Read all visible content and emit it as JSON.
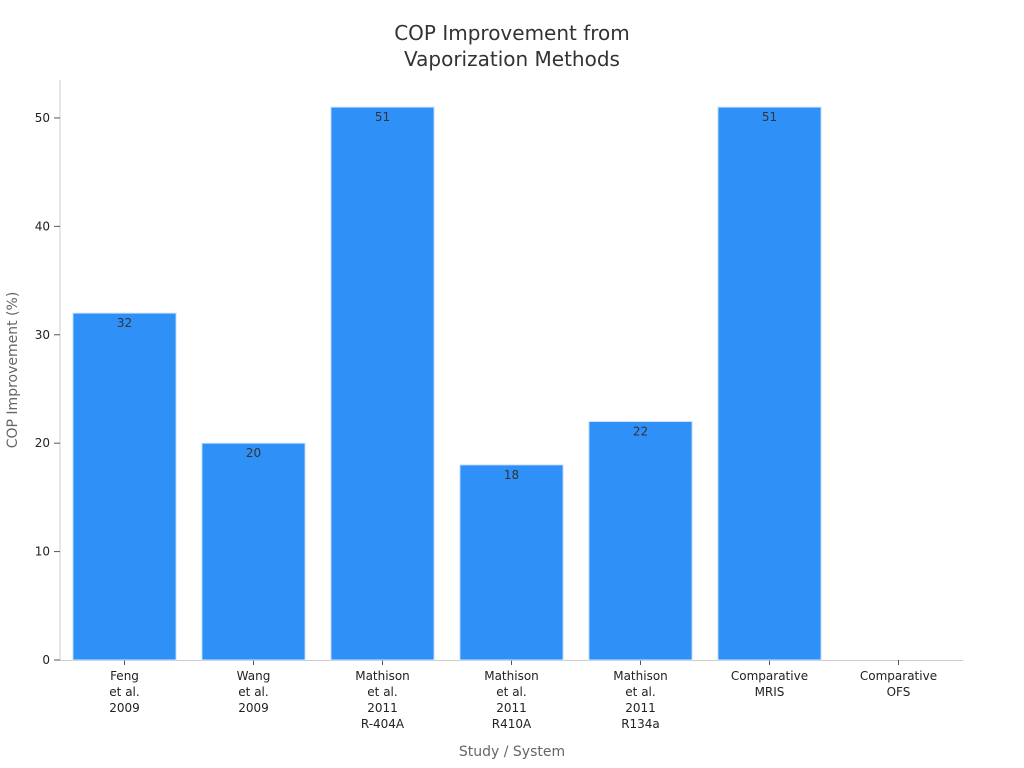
{
  "chart_data": {
    "type": "bar",
    "title": "COP Improvement from\nVaporization Methods",
    "xlabel": "Study / System",
    "ylabel": "COP Improvement (%)",
    "ylim": [
      0,
      53.5
    ],
    "yticks": [
      0,
      10,
      20,
      30,
      40,
      50
    ],
    "categories": [
      [
        "Feng",
        "et al.",
        "2009"
      ],
      [
        "Wang",
        "et al.",
        "2009"
      ],
      [
        "Mathison",
        "et al.",
        "2011",
        "R-404A"
      ],
      [
        "Mathison",
        "et al.",
        "2011",
        "R410A"
      ],
      [
        "Mathison",
        "et al.",
        "2011",
        "R134a"
      ],
      [
        "Comparative",
        "MRIS"
      ],
      [
        "Comparative",
        "OFS"
      ]
    ],
    "values": [
      32,
      20,
      51,
      18,
      22,
      51,
      null
    ],
    "data_labels": [
      "32",
      "20",
      "51",
      "18",
      "22",
      "51",
      ""
    ],
    "grid": false,
    "bar_color": "#2f91f7"
  }
}
